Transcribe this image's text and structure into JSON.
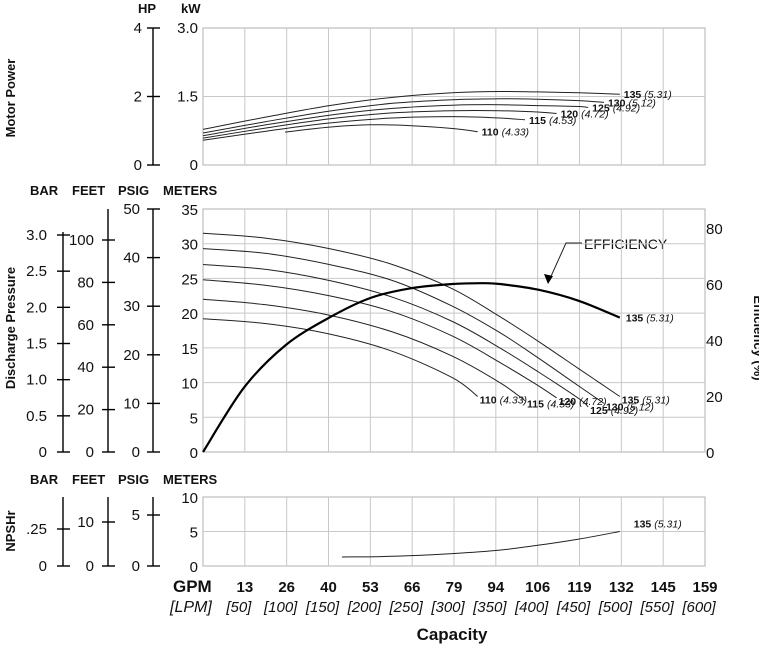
{
  "chart_data": [
    {
      "type": "line",
      "id": "power",
      "ylabel": "Motor Power",
      "unit_labels": [
        "HP",
        "kW"
      ],
      "left_axis_ticks": [
        "4",
        "2",
        "0"
      ],
      "inner_axis_ticks": [
        "3.0",
        "1.5",
        "0"
      ],
      "ylim_kw": [
        0,
        3.0
      ],
      "series": [
        {
          "label": "135",
          "sub": "(5.31)",
          "x": [
            0,
            20,
            40,
            60,
            79,
            94,
            106,
            119,
            132
          ],
          "y": [
            0.78,
            1.05,
            1.3,
            1.48,
            1.58,
            1.61,
            1.6,
            1.58,
            1.55
          ]
        },
        {
          "label": "130",
          "sub": "(5.12)",
          "x": [
            0,
            20,
            40,
            60,
            79,
            94,
            106,
            119,
            127
          ],
          "y": [
            0.7,
            0.95,
            1.18,
            1.35,
            1.43,
            1.45,
            1.44,
            1.41,
            1.37
          ]
        },
        {
          "label": "125",
          "sub": "(4.92)",
          "x": [
            0,
            20,
            40,
            60,
            79,
            94,
            106,
            119,
            122
          ],
          "y": [
            0.64,
            0.88,
            1.09,
            1.24,
            1.31,
            1.32,
            1.3,
            1.28,
            1.26
          ]
        },
        {
          "label": "120",
          "sub": "(4.72)",
          "x": [
            0,
            20,
            40,
            60,
            79,
            94,
            106,
            112
          ],
          "y": [
            0.59,
            0.81,
            1.01,
            1.14,
            1.19,
            1.19,
            1.16,
            1.13
          ]
        },
        {
          "label": "115",
          "sub": "(4.53)",
          "x": [
            0,
            20,
            40,
            60,
            79,
            94,
            102
          ],
          "y": [
            0.54,
            0.74,
            0.92,
            1.03,
            1.06,
            1.03,
            0.99
          ]
        },
        {
          "label": "110",
          "sub": "(4.33)",
          "x": [
            26,
            40,
            53,
            66,
            79,
            87
          ],
          "y": [
            0.72,
            0.83,
            0.88,
            0.86,
            0.8,
            0.73
          ]
        }
      ]
    },
    {
      "type": "line",
      "id": "pressure",
      "ylabel": "Discharge Pressure",
      "right_label": "Efficiency (%)",
      "unit_labels": [
        "BAR",
        "FEET",
        "PSIG",
        "METERS"
      ],
      "bar_ticks": [
        "3.0",
        "2.5",
        "2.0",
        "1.5",
        "1.0",
        "0.5",
        "0"
      ],
      "feet_ticks": [
        "100",
        "80",
        "60",
        "40",
        "20",
        "0"
      ],
      "psig_ticks": [
        "50",
        "40",
        "30",
        "20",
        "10",
        "0"
      ],
      "meters_ticks": [
        "35",
        "30",
        "25",
        "20",
        "15",
        "10",
        "5",
        "0"
      ],
      "efficiency_ticks": [
        "80",
        "60",
        "40",
        "20",
        "0"
      ],
      "ylim_m": [
        0,
        35
      ],
      "series": [
        {
          "label": "135",
          "sub": "(5.31)",
          "x": [
            0,
            20,
            40,
            60,
            79,
            94,
            106,
            119,
            132
          ],
          "y": [
            31.5,
            30.8,
            29.3,
            27,
            23.5,
            19.5,
            16,
            12,
            8
          ]
        },
        {
          "label": "130",
          "sub": "(5.12)",
          "x": [
            0,
            20,
            40,
            60,
            79,
            94,
            106,
            119,
            127
          ],
          "y": [
            29.3,
            28.6,
            27,
            24.7,
            21,
            17.2,
            13.6,
            9.5,
            7
          ]
        },
        {
          "label": "125",
          "sub": "(4.92)",
          "x": [
            0,
            20,
            40,
            60,
            79,
            94,
            106,
            119,
            122
          ],
          "y": [
            27,
            26.3,
            24.7,
            22.3,
            18.8,
            15,
            11.6,
            7.7,
            6.5
          ]
        },
        {
          "label": "120",
          "sub": "(4.72)",
          "x": [
            0,
            20,
            40,
            60,
            79,
            94,
            106,
            112
          ],
          "y": [
            24.8,
            24,
            22.5,
            20.2,
            16.7,
            12.9,
            9.6,
            7.8
          ]
        },
        {
          "label": "115",
          "sub": "(4.53)",
          "x": [
            0,
            20,
            40,
            60,
            79,
            94,
            102
          ],
          "y": [
            22,
            21.2,
            19.7,
            17.3,
            13.8,
            10,
            7.4
          ]
        },
        {
          "label": "110",
          "sub": "(4.33)",
          "x": [
            0,
            20,
            40,
            60,
            79,
            87
          ],
          "y": [
            19.2,
            18.5,
            17,
            14.5,
            10.7,
            8
          ]
        },
        {
          "label": "EFFICIENCY",
          "x": [
            0,
            13,
            26,
            40,
            53,
            66,
            79,
            88,
            94,
            106,
            119,
            132
          ],
          "eff_pct": [
            0,
            23,
            38,
            48,
            55,
            58.5,
            60,
            60.3,
            60,
            58,
            54,
            48
          ],
          "end_label": "135",
          "end_sub": "(5.31)"
        }
      ]
    },
    {
      "type": "line",
      "id": "npshr",
      "ylabel": "NPSHr",
      "unit_labels": [
        "BAR",
        "FEET",
        "PSIG",
        "METERS"
      ],
      "bar_ticks": [
        ".25",
        "0"
      ],
      "feet_ticks": [
        "10",
        "0"
      ],
      "psig_ticks": [
        "5",
        "0"
      ],
      "meters_ticks": [
        "10",
        "5",
        "0"
      ],
      "ylim_m": [
        0,
        10
      ],
      "series": [
        {
          "label": "135",
          "sub": "(5.31)",
          "x": [
            44,
            60,
            79,
            94,
            106,
            119,
            132
          ],
          "y": [
            1.3,
            1.4,
            1.8,
            2.3,
            3,
            3.9,
            5
          ]
        }
      ]
    }
  ],
  "xaxis": {
    "gpm_label": "GPM",
    "lpm_label": "[LPM]",
    "gpm_ticks": [
      "13",
      "26",
      "40",
      "53",
      "66",
      "79",
      "94",
      "106",
      "119",
      "132",
      "145",
      "159"
    ],
    "lpm_ticks": [
      "[50]",
      "[100]",
      "[150]",
      "[200]",
      "[250]",
      "[300]",
      "[350]",
      "[400]",
      "[450]",
      "[500]",
      "[550]",
      "[600]"
    ],
    "title": "Capacity"
  }
}
